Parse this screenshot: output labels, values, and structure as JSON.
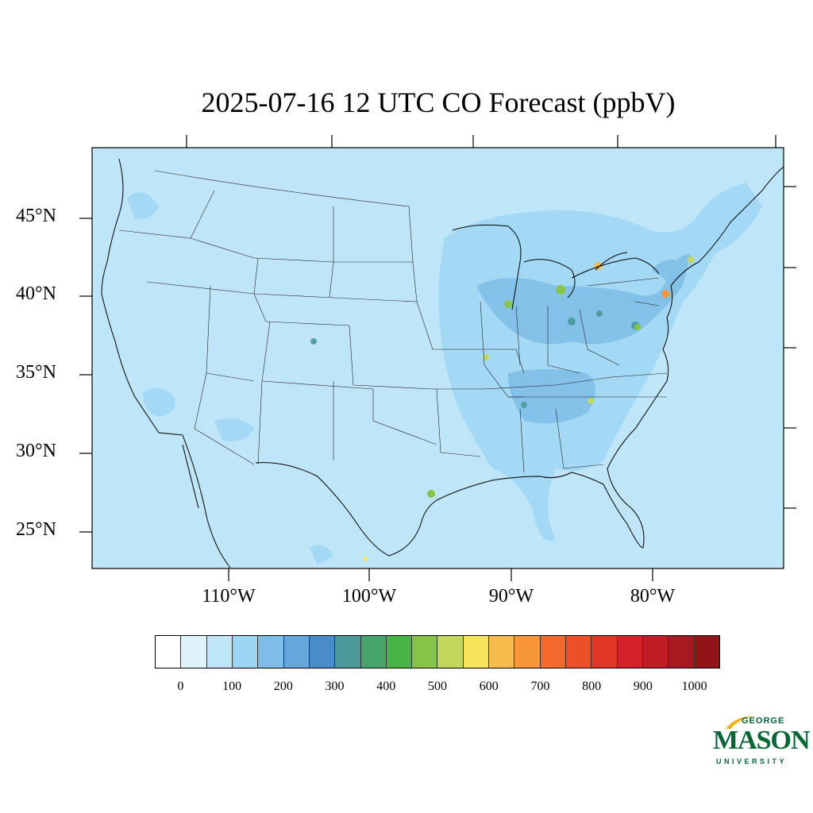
{
  "title": "2025-07-16 12 UTC CO Forecast (ppbV)",
  "map": {
    "background_color": "#bfe6f8",
    "lat_labels": [
      "45°N",
      "40°N",
      "35°N",
      "30°N",
      "25°N"
    ],
    "lon_labels": [
      "110°W",
      "100°W",
      "90°W",
      "80°W"
    ]
  },
  "colorbar": {
    "colors": [
      "#ffffff",
      "#dff3fc",
      "#bfe6f8",
      "#9dd6f4",
      "#7fbde6",
      "#66a6dc",
      "#4a8cc9",
      "#4a9a9c",
      "#46a46c",
      "#46b446",
      "#86c446",
      "#c2d65a",
      "#f8e45a",
      "#f8bc4c",
      "#f8963c",
      "#f46a2e",
      "#ec5028",
      "#e03828",
      "#d42028",
      "#c01c24",
      "#a81820",
      "#901418"
    ],
    "labels": [
      "0",
      "100",
      "200",
      "300",
      "400",
      "500",
      "600",
      "700",
      "800",
      "900",
      "1000"
    ]
  },
  "logo": {
    "line1": "GEORGE",
    "line2": "MASON",
    "line3": "UNIVERSITY",
    "color": "#006633",
    "accent": "#f2b21c"
  }
}
